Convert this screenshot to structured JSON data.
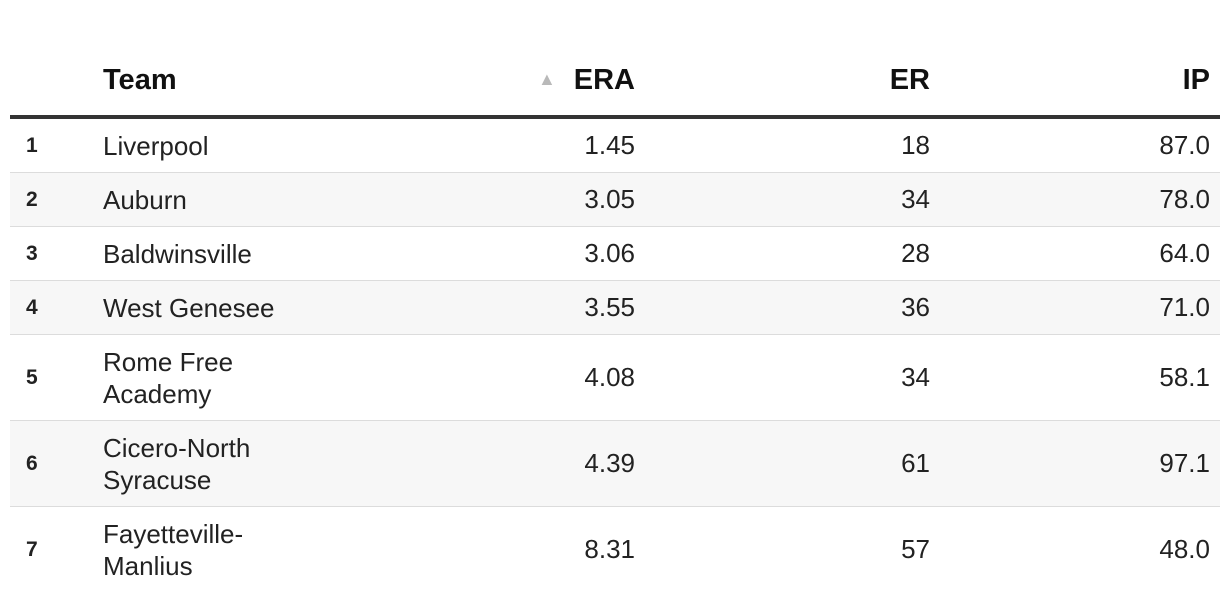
{
  "table": {
    "headers": {
      "team": "Team",
      "era": "ERA",
      "er": "ER",
      "ip": "IP"
    },
    "sort": {
      "column": "ERA",
      "direction": "ascending",
      "icon": "sort-ascending-icon",
      "glyph": "▲"
    },
    "rows": [
      {
        "rank": "1",
        "team": "Liverpool",
        "era": "1.45",
        "er": "18",
        "ip": "87.0"
      },
      {
        "rank": "2",
        "team": "Auburn",
        "era": "3.05",
        "er": "34",
        "ip": "78.0"
      },
      {
        "rank": "3",
        "team": "Baldwinsville",
        "era": "3.06",
        "er": "28",
        "ip": "64.0"
      },
      {
        "rank": "4",
        "team": "West Genesee",
        "era": "3.55",
        "er": "36",
        "ip": "71.0"
      },
      {
        "rank": "5",
        "team": "Rome Free Academy",
        "era": "4.08",
        "er": "34",
        "ip": "58.1"
      },
      {
        "rank": "6",
        "team": "Cicero-North Syracuse",
        "era": "4.39",
        "er": "61",
        "ip": "97.1"
      },
      {
        "rank": "7",
        "team": "Fayetteville-Manlius",
        "era": "8.31",
        "er": "57",
        "ip": "48.0"
      }
    ]
  }
}
